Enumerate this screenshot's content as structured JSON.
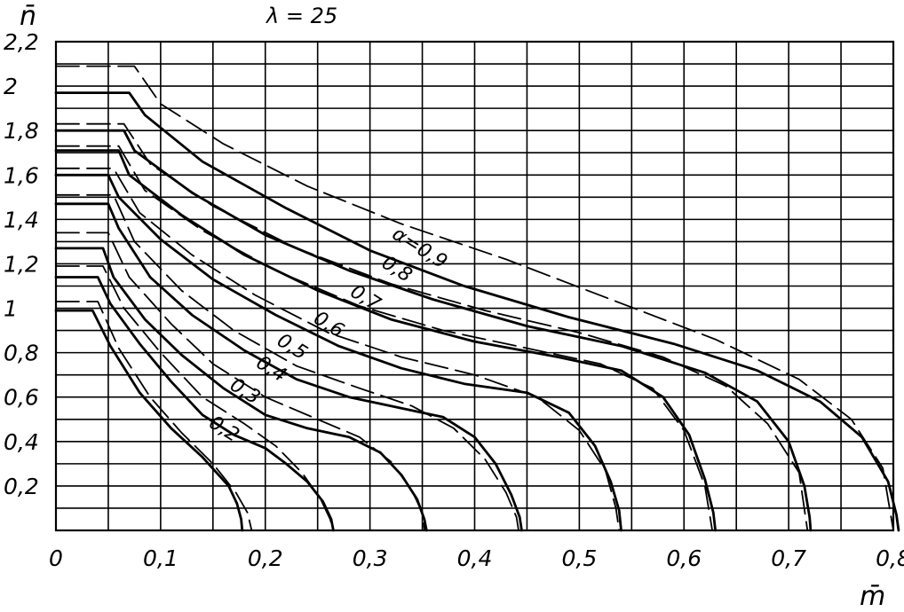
{
  "chart_data": {
    "type": "line",
    "title": "λ = 25",
    "xlabel": "m̄",
    "ylabel": "n̄",
    "xlim": [
      0,
      0.8
    ],
    "ylim": [
      0,
      2.2
    ],
    "grid": true,
    "x_ticks": [
      {
        "value": 0,
        "label": "0"
      },
      {
        "value": 0.1,
        "label": "0,1"
      },
      {
        "value": 0.2,
        "label": "0,2"
      },
      {
        "value": 0.3,
        "label": "0,3"
      },
      {
        "value": 0.4,
        "label": "0,4"
      },
      {
        "value": 0.5,
        "label": "0,5"
      },
      {
        "value": 0.6,
        "label": "0,6"
      },
      {
        "value": 0.7,
        "label": "0,7"
      },
      {
        "value": 0.8,
        "label": "0,8"
      }
    ],
    "y_ticks": [
      {
        "value": 0.2,
        "label": "0,2"
      },
      {
        "value": 0.4,
        "label": "0,4"
      },
      {
        "value": 0.6,
        "label": "0,6"
      },
      {
        "value": 0.8,
        "label": "0,8"
      },
      {
        "value": 1.0,
        "label": "1"
      },
      {
        "value": 1.2,
        "label": "1,2"
      },
      {
        "value": 1.4,
        "label": "1,4"
      },
      {
        "value": 1.6,
        "label": "1,6"
      },
      {
        "value": 1.8,
        "label": "1,8"
      },
      {
        "value": 2.0,
        "label": "2"
      },
      {
        "value": 2.2,
        "label": "2,2"
      }
    ],
    "curve_labels": [
      "α=0,9",
      "0,8",
      "0,7",
      "0,6",
      "0,5",
      "0,4",
      "0,3",
      "0,2"
    ],
    "series": [
      {
        "alpha": 0.2,
        "style": "solid",
        "points": [
          [
            0,
            0.99
          ],
          [
            0.035,
            0.99
          ],
          [
            0.052,
            0.83
          ],
          [
            0.08,
            0.62
          ],
          [
            0.11,
            0.46
          ],
          [
            0.14,
            0.33
          ],
          [
            0.165,
            0.2
          ],
          [
            0.173,
            0.12
          ],
          [
            0.177,
            0.05
          ],
          [
            0.178,
            0
          ]
        ]
      },
      {
        "alpha": 0.2,
        "style": "dashed",
        "points": [
          [
            0,
            1.03
          ],
          [
            0.04,
            1.03
          ],
          [
            0.06,
            0.82
          ],
          [
            0.09,
            0.6
          ],
          [
            0.12,
            0.44
          ],
          [
            0.15,
            0.3
          ],
          [
            0.172,
            0.17
          ],
          [
            0.183,
            0.08
          ],
          [
            0.187,
            0
          ]
        ]
      },
      {
        "alpha": 0.3,
        "style": "solid",
        "points": [
          [
            0,
            1.14
          ],
          [
            0.04,
            1.14
          ],
          [
            0.052,
            1.02
          ],
          [
            0.08,
            0.84
          ],
          [
            0.11,
            0.67
          ],
          [
            0.14,
            0.52
          ],
          [
            0.17,
            0.43
          ],
          [
            0.2,
            0.37
          ],
          [
            0.22,
            0.3
          ],
          [
            0.24,
            0.22
          ],
          [
            0.255,
            0.13
          ],
          [
            0.263,
            0.05
          ],
          [
            0.265,
            0
          ]
        ]
      },
      {
        "alpha": 0.3,
        "style": "dashed",
        "points": [
          [
            0,
            1.19
          ],
          [
            0.045,
            1.19
          ],
          [
            0.065,
            1.0
          ],
          [
            0.1,
            0.8
          ],
          [
            0.14,
            0.6
          ],
          [
            0.18,
            0.48
          ],
          [
            0.21,
            0.38
          ],
          [
            0.235,
            0.26
          ],
          [
            0.253,
            0.14
          ],
          [
            0.262,
            0.05
          ],
          [
            0.265,
            0
          ]
        ]
      },
      {
        "alpha": 0.4,
        "style": "solid",
        "points": [
          [
            0,
            1.27
          ],
          [
            0.045,
            1.27
          ],
          [
            0.055,
            1.14
          ],
          [
            0.085,
            0.95
          ],
          [
            0.12,
            0.79
          ],
          [
            0.16,
            0.64
          ],
          [
            0.2,
            0.52
          ],
          [
            0.24,
            0.46
          ],
          [
            0.28,
            0.42
          ],
          [
            0.31,
            0.35
          ],
          [
            0.33,
            0.25
          ],
          [
            0.345,
            0.14
          ],
          [
            0.352,
            0.05
          ],
          [
            0.354,
            0
          ]
        ]
      },
      {
        "alpha": 0.4,
        "style": "dashed",
        "points": [
          [
            0,
            1.34
          ],
          [
            0.05,
            1.34
          ],
          [
            0.07,
            1.14
          ],
          [
            0.11,
            0.93
          ],
          [
            0.15,
            0.75
          ],
          [
            0.2,
            0.6
          ],
          [
            0.25,
            0.5
          ],
          [
            0.29,
            0.42
          ],
          [
            0.32,
            0.31
          ],
          [
            0.34,
            0.18
          ],
          [
            0.35,
            0.08
          ],
          [
            0.352,
            0
          ]
        ]
      },
      {
        "alpha": 0.5,
        "style": "solid",
        "points": [
          [
            0,
            1.47
          ],
          [
            0.05,
            1.47
          ],
          [
            0.06,
            1.36
          ],
          [
            0.09,
            1.14
          ],
          [
            0.13,
            0.97
          ],
          [
            0.18,
            0.81
          ],
          [
            0.23,
            0.68
          ],
          [
            0.28,
            0.6
          ],
          [
            0.33,
            0.55
          ],
          [
            0.37,
            0.51
          ],
          [
            0.4,
            0.42
          ],
          [
            0.42,
            0.3
          ],
          [
            0.435,
            0.16
          ],
          [
            0.443,
            0.06
          ],
          [
            0.445,
            0
          ]
        ]
      },
      {
        "alpha": 0.5,
        "style": "dashed",
        "points": [
          [
            0,
            1.51
          ],
          [
            0.055,
            1.51
          ],
          [
            0.075,
            1.3
          ],
          [
            0.12,
            1.08
          ],
          [
            0.17,
            0.9
          ],
          [
            0.23,
            0.74
          ],
          [
            0.29,
            0.64
          ],
          [
            0.34,
            0.56
          ],
          [
            0.38,
            0.46
          ],
          [
            0.41,
            0.32
          ],
          [
            0.43,
            0.17
          ],
          [
            0.44,
            0.06
          ],
          [
            0.442,
            0
          ]
        ]
      },
      {
        "alpha": 0.6,
        "style": "solid",
        "points": [
          [
            0,
            1.6
          ],
          [
            0.05,
            1.6
          ],
          [
            0.06,
            1.5
          ],
          [
            0.1,
            1.31
          ],
          [
            0.15,
            1.13
          ],
          [
            0.21,
            0.97
          ],
          [
            0.27,
            0.83
          ],
          [
            0.33,
            0.73
          ],
          [
            0.39,
            0.66
          ],
          [
            0.45,
            0.62
          ],
          [
            0.49,
            0.53
          ],
          [
            0.515,
            0.38
          ],
          [
            0.53,
            0.22
          ],
          [
            0.538,
            0.09
          ],
          [
            0.54,
            0
          ]
        ]
      },
      {
        "alpha": 0.6,
        "style": "dashed",
        "points": [
          [
            0,
            1.63
          ],
          [
            0.055,
            1.63
          ],
          [
            0.08,
            1.43
          ],
          [
            0.13,
            1.24
          ],
          [
            0.19,
            1.06
          ],
          [
            0.26,
            0.89
          ],
          [
            0.33,
            0.78
          ],
          [
            0.4,
            0.7
          ],
          [
            0.46,
            0.6
          ],
          [
            0.5,
            0.45
          ],
          [
            0.525,
            0.27
          ],
          [
            0.535,
            0.1
          ],
          [
            0.538,
            0
          ]
        ]
      },
      {
        "alpha": 0.7,
        "style": "solid",
        "points": [
          [
            0,
            1.71
          ],
          [
            0.06,
            1.71
          ],
          [
            0.07,
            1.6
          ],
          [
            0.12,
            1.42
          ],
          [
            0.18,
            1.24
          ],
          [
            0.25,
            1.08
          ],
          [
            0.32,
            0.95
          ],
          [
            0.4,
            0.85
          ],
          [
            0.48,
            0.78
          ],
          [
            0.54,
            0.72
          ],
          [
            0.58,
            0.6
          ],
          [
            0.605,
            0.43
          ],
          [
            0.62,
            0.23
          ],
          [
            0.628,
            0.08
          ],
          [
            0.63,
            0
          ]
        ]
      },
      {
        "alpha": 0.7,
        "style": "dashed",
        "points": [
          [
            0,
            1.73
          ],
          [
            0.06,
            1.73
          ],
          [
            0.085,
            1.53
          ],
          [
            0.14,
            1.35
          ],
          [
            0.21,
            1.17
          ],
          [
            0.29,
            1.01
          ],
          [
            0.37,
            0.9
          ],
          [
            0.45,
            0.82
          ],
          [
            0.52,
            0.75
          ],
          [
            0.57,
            0.64
          ],
          [
            0.6,
            0.45
          ],
          [
            0.62,
            0.2
          ],
          [
            0.627,
            0
          ]
        ]
      },
      {
        "alpha": 0.8,
        "style": "solid",
        "points": [
          [
            0,
            1.8
          ],
          [
            0.065,
            1.8
          ],
          [
            0.075,
            1.71
          ],
          [
            0.13,
            1.52
          ],
          [
            0.2,
            1.33
          ],
          [
            0.28,
            1.17
          ],
          [
            0.36,
            1.04
          ],
          [
            0.45,
            0.92
          ],
          [
            0.54,
            0.83
          ],
          [
            0.62,
            0.71
          ],
          [
            0.67,
            0.58
          ],
          [
            0.7,
            0.4
          ],
          [
            0.715,
            0.2
          ],
          [
            0.72,
            0.06
          ],
          [
            0.721,
            0
          ]
        ]
      },
      {
        "alpha": 0.8,
        "style": "dashed",
        "points": [
          [
            0,
            1.83
          ],
          [
            0.065,
            1.83
          ],
          [
            0.09,
            1.65
          ],
          [
            0.15,
            1.46
          ],
          [
            0.23,
            1.27
          ],
          [
            0.32,
            1.11
          ],
          [
            0.41,
            0.99
          ],
          [
            0.5,
            0.89
          ],
          [
            0.58,
            0.78
          ],
          [
            0.64,
            0.65
          ],
          [
            0.68,
            0.48
          ],
          [
            0.71,
            0.26
          ],
          [
            0.718,
            0
          ]
        ]
      },
      {
        "alpha": 0.9,
        "style": "solid",
        "points": [
          [
            0,
            1.97
          ],
          [
            0.07,
            1.97
          ],
          [
            0.085,
            1.87
          ],
          [
            0.14,
            1.66
          ],
          [
            0.22,
            1.45
          ],
          [
            0.3,
            1.26
          ],
          [
            0.39,
            1.1
          ],
          [
            0.49,
            0.96
          ],
          [
            0.59,
            0.84
          ],
          [
            0.67,
            0.72
          ],
          [
            0.73,
            0.58
          ],
          [
            0.77,
            0.42
          ],
          [
            0.795,
            0.22
          ],
          [
            0.803,
            0.07
          ],
          [
            0.805,
            0
          ]
        ]
      },
      {
        "alpha": 0.9,
        "style": "dashed",
        "points": [
          [
            0,
            2.09
          ],
          [
            0.075,
            2.09
          ],
          [
            0.1,
            1.92
          ],
          [
            0.16,
            1.74
          ],
          [
            0.24,
            1.55
          ],
          [
            0.33,
            1.38
          ],
          [
            0.43,
            1.22
          ],
          [
            0.53,
            1.04
          ],
          [
            0.63,
            0.86
          ],
          [
            0.71,
            0.68
          ],
          [
            0.76,
            0.5
          ],
          [
            0.79,
            0.28
          ],
          [
            0.8,
            0
          ]
        ]
      }
    ]
  }
}
